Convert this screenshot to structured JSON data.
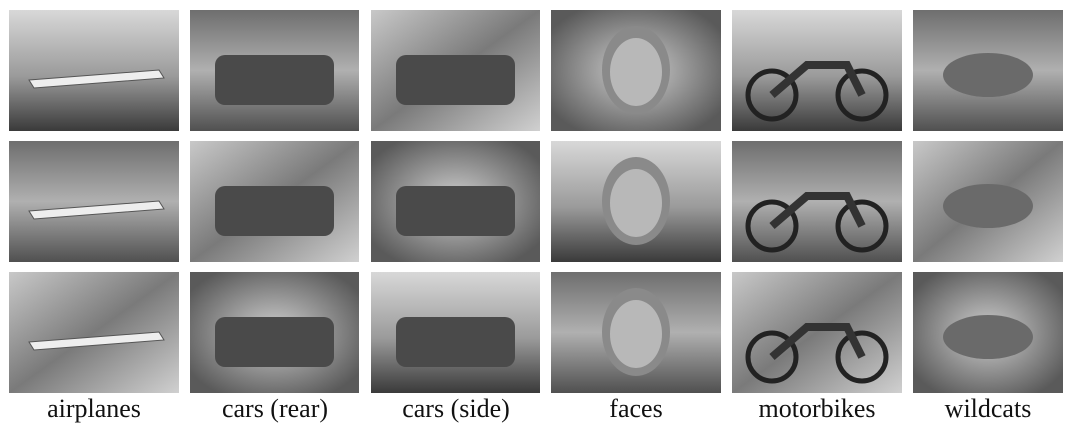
{
  "columns": [
    {
      "label": "airplanes"
    },
    {
      "label": "cars (rear)"
    },
    {
      "label": "cars (side)"
    },
    {
      "label": "faces"
    },
    {
      "label": "motorbikes"
    },
    {
      "label": "wildcats"
    }
  ]
}
